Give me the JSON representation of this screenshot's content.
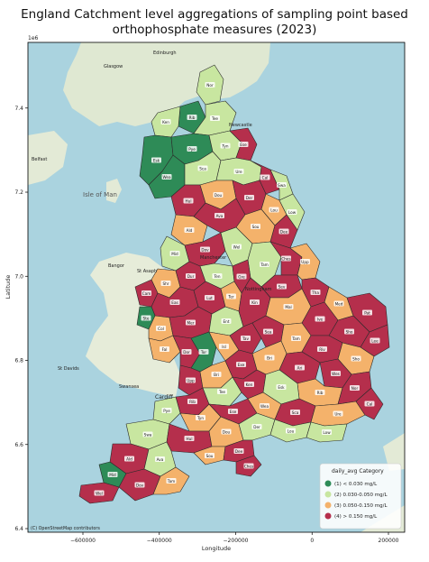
{
  "figure": {
    "title_line1": "England Catchment level aggregations of sampling point based",
    "title_line2": "orthophosphate measures (2023)",
    "xlabel": "Longitude",
    "ylabel": "Latitude",
    "y_offset_label": "1e6",
    "attribution": "(C) OpenStreetMap contributors"
  },
  "map_labels": {
    "edinburgh": "Edinburgh",
    "glasgow": "Glasgow",
    "belfast": "Belfast",
    "isle_of_man": "Isle of Man",
    "manchester": "Manchester",
    "bangor": "Bangor",
    "st_asaph": "St Asaph",
    "swansea": "Swansea",
    "st_davids": "St Davids",
    "cardiff": "Cardiff",
    "newcastle": "Newcastle",
    "nottingham": "Nottingham"
  },
  "x_ticks": [
    {
      "value": -600000,
      "label": "−600000"
    },
    {
      "value": -400000,
      "label": "−400000"
    },
    {
      "value": -200000,
      "label": "−200000"
    },
    {
      "value": 0,
      "label": "0"
    },
    {
      "value": 200000,
      "label": "200000"
    }
  ],
  "y_ticks": [
    {
      "value": 6.4,
      "label": "6.4"
    },
    {
      "value": 6.6,
      "label": "6.6"
    },
    {
      "value": 6.8,
      "label": "6.8"
    },
    {
      "value": 7.0,
      "label": "7.0"
    },
    {
      "value": 7.2,
      "label": "7.2"
    },
    {
      "value": 7.4,
      "label": "7.4"
    }
  ],
  "legend": {
    "title": "daily_avg Category",
    "entries": [
      {
        "label": "(1) < 0.030 mg/L",
        "color": "#2e8b57"
      },
      {
        "label": "(2) 0.030-0.050 mg/L",
        "color": "#c8e6a0"
      },
      {
        "label": "(3) 0.050-0.150 mg/L",
        "color": "#f4b26b"
      },
      {
        "label": "(4) > 0.150 mg/L",
        "color": "#b52f4c"
      }
    ]
  },
  "catchment_labels": [
    "Nor",
    "Rib",
    "Tee",
    "Ken",
    "Esk",
    "Pye",
    "Tyn",
    "Ese",
    "Wea",
    "Sca",
    "Ure",
    "Cal",
    "Swa",
    "Hul",
    "Dou",
    "Der",
    "Lou",
    "Low",
    "Ald",
    "Ava",
    "Sou",
    "Dee",
    "Mid",
    "Dov",
    "Wel",
    "Tam",
    "Ches",
    "Upp",
    "Shr",
    "Dur",
    "Ten",
    "Gre",
    "Cam",
    "Eas",
    "Lut",
    "Ter",
    "Sev",
    "Tha",
    "Med",
    "Pat",
    "Ste",
    "Col",
    "Mer",
    "Ent",
    "Kin",
    "Mal",
    "Ive",
    "Sho",
    "Lee",
    "Fal",
    "Dor",
    "Tor",
    "Isl",
    "Tav",
    "Sea",
    "Tam",
    "Riv",
    "Sho",
    "Wes",
    "Upp",
    "Bri",
    "Exe",
    "Bri",
    "Ari",
    "Rib"
  ],
  "category_colors": {
    "c1": "#2e8b57",
    "c2": "#c8e6a0",
    "c3": "#f4b26b",
    "c4": "#b52f4c"
  }
}
